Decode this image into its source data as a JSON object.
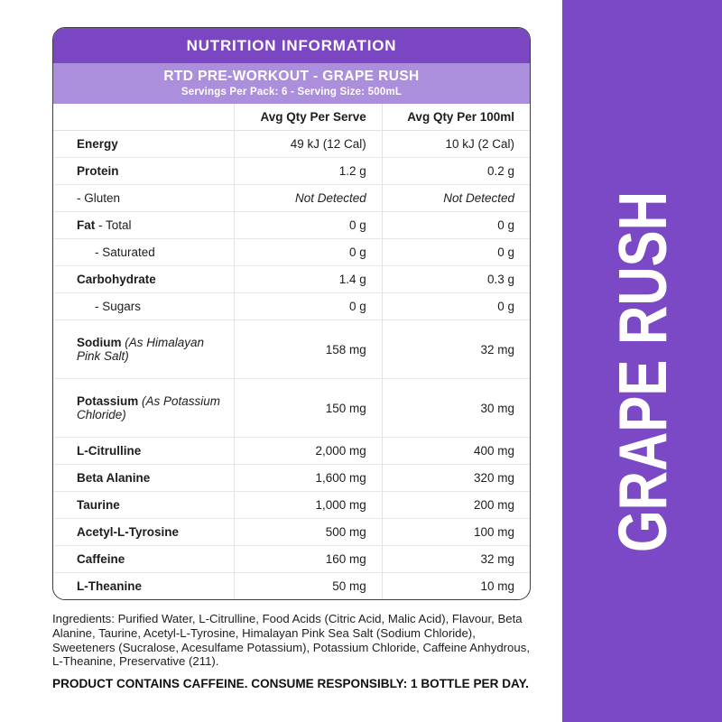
{
  "header": {
    "title": "NUTRITION INFORMATION"
  },
  "subheader": {
    "title": "RTD PRE-WORKOUT - GRAPE RUSH",
    "serving_info": "Servings Per Pack: 6 - Serving Size: 500mL"
  },
  "table": {
    "columns": [
      "",
      "Avg Qty Per Serve",
      "Avg Qty Per 100ml"
    ],
    "rows": [
      {
        "label_bold": "Energy",
        "label_plain": "",
        "label_italic": "",
        "indent": false,
        "serve": "49 kJ (12 Cal)",
        "per100": "10 kJ (2 Cal)",
        "values_italic": false,
        "tall": false
      },
      {
        "label_bold": "Protein",
        "label_plain": "",
        "label_italic": "",
        "indent": false,
        "serve": "1.2 g",
        "per100": "0.2 g",
        "values_italic": false,
        "tall": false
      },
      {
        "label_bold": "",
        "label_plain": "- Gluten",
        "label_italic": "",
        "indent": false,
        "serve": "Not Detected",
        "per100": "Not Detected",
        "values_italic": true,
        "tall": false
      },
      {
        "label_bold": "Fat",
        "label_plain": " - Total",
        "label_italic": "",
        "indent": false,
        "serve": "0 g",
        "per100": "0 g",
        "values_italic": false,
        "tall": false
      },
      {
        "label_bold": "",
        "label_plain": "- Saturated",
        "label_italic": "",
        "indent": true,
        "serve": "0 g",
        "per100": "0 g",
        "values_italic": false,
        "tall": false
      },
      {
        "label_bold": "Carbohydrate",
        "label_plain": "",
        "label_italic": "",
        "indent": false,
        "serve": "1.4 g",
        "per100": "0.3 g",
        "values_italic": false,
        "tall": false
      },
      {
        "label_bold": "",
        "label_plain": "- Sugars",
        "label_italic": "",
        "indent": true,
        "serve": "0 g",
        "per100": "0 g",
        "values_italic": false,
        "tall": false
      },
      {
        "label_bold": "Sodium",
        "label_plain": "",
        "label_italic": " (As Himalayan Pink Salt)",
        "indent": false,
        "serve": "158 mg",
        "per100": "32 mg",
        "values_italic": false,
        "tall": true
      },
      {
        "label_bold": "Potassium",
        "label_plain": "",
        "label_italic": " (As Potassium Chloride)",
        "indent": false,
        "serve": "150 mg",
        "per100": "30 mg",
        "values_italic": false,
        "tall": true
      },
      {
        "label_bold": "L-Citrulline",
        "label_plain": "",
        "label_italic": "",
        "indent": false,
        "serve": "2,000 mg",
        "per100": "400 mg",
        "values_italic": false,
        "tall": false
      },
      {
        "label_bold": "Beta Alanine",
        "label_plain": "",
        "label_italic": "",
        "indent": false,
        "serve": "1,600 mg",
        "per100": "320 mg",
        "values_italic": false,
        "tall": false
      },
      {
        "label_bold": "Taurine",
        "label_plain": "",
        "label_italic": "",
        "indent": false,
        "serve": "1,000 mg",
        "per100": "200 mg",
        "values_italic": false,
        "tall": false
      },
      {
        "label_bold": "Acetyl-L-Tyrosine",
        "label_plain": "",
        "label_italic": "",
        "indent": false,
        "serve": "500 mg",
        "per100": "100 mg",
        "values_italic": false,
        "tall": false
      },
      {
        "label_bold": "Caffeine",
        "label_plain": "",
        "label_italic": "",
        "indent": false,
        "serve": "160 mg",
        "per100": "32 mg",
        "values_italic": false,
        "tall": false
      },
      {
        "label_bold": "L-Theanine",
        "label_plain": "",
        "label_italic": "",
        "indent": false,
        "serve": "50 mg",
        "per100": "10 mg",
        "values_italic": false,
        "tall": false
      }
    ]
  },
  "ingredients": "Ingredients: Purified Water, L-Citrulline, Food Acids (Citric Acid, Malic Acid), Flavour, Beta Alanine, Taurine, Acetyl-L-Tyrosine, Himalayan Pink Sea Salt (Sodium Chloride), Sweeteners (Sucralose, Acesulfame Potassium), Potassium Chloride, Caffeine Anhydrous, L-Theanine, Preservative (211).",
  "caffeine_warning": "PRODUCT CONTAINS CAFFEINE. CONSUME RESPONSIBLY: 1 BOTTLE PER DAY.",
  "sidebar": {
    "flavor": "GRAPE RUSH"
  },
  "colors": {
    "purple_dark": "#7B46C2",
    "purple_light": "#AB8EDC",
    "sidebar_purple": "#7B48C6",
    "text": "#1d1d1d"
  }
}
